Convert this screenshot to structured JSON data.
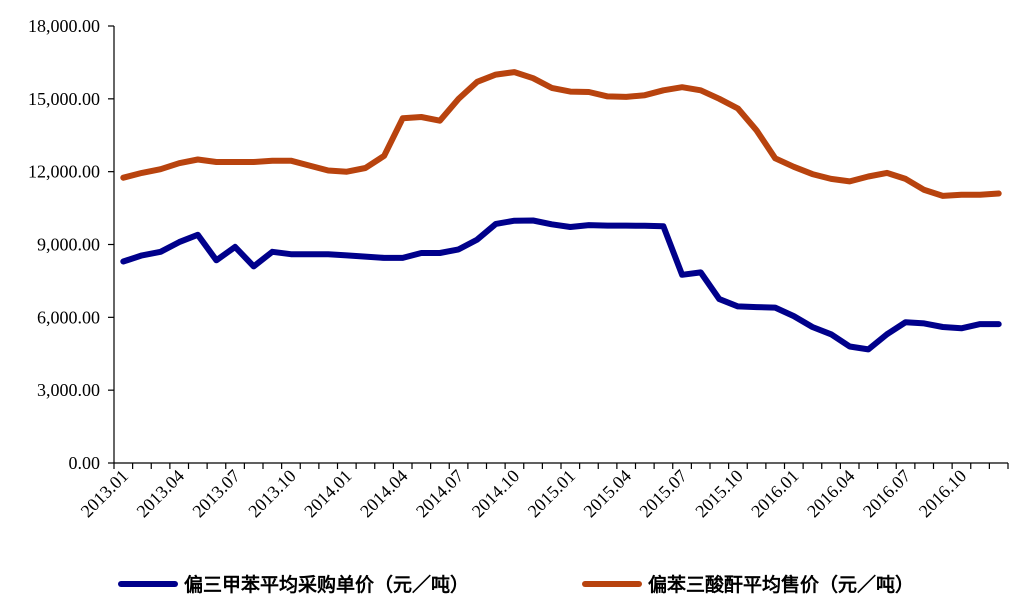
{
  "chart_data": {
    "type": "line",
    "title": "",
    "xlabel": "",
    "ylabel": "",
    "ylim": [
      0,
      18000
    ],
    "y_ticks": [
      "0.00",
      "3,000.00",
      "6,000.00",
      "9,000.00",
      "12,000.00",
      "15,000.00",
      "18,000.00"
    ],
    "x_tick_labels": [
      "2013.01",
      "2013.04",
      "2013.07",
      "2013.10",
      "2014.01",
      "2014.04",
      "2014.07",
      "2014.10",
      "2015.01",
      "2015.04",
      "2015.07",
      "2015.10",
      "2016.01",
      "2016.04",
      "2016.07",
      "2016.10"
    ],
    "grid": false,
    "legend_position": "bottom",
    "series": [
      {
        "name": "偏三甲苯平均采购单价（元／吨）",
        "color": "#00008B",
        "values": [
          8300,
          8550,
          8700,
          9100,
          9400,
          8350,
          8900,
          8100,
          8700,
          8600,
          8600,
          8600,
          8550,
          8500,
          8450,
          8450,
          8650,
          8650,
          8800,
          9200,
          9850,
          9980,
          9990,
          9830,
          9720,
          9800,
          9780,
          9780,
          9770,
          9750,
          7750,
          7850,
          6750,
          6450,
          6420,
          6400,
          6050,
          5600,
          5300,
          4800,
          4680,
          5300,
          5800,
          5750,
          5600,
          5550,
          5720,
          5720
        ]
      },
      {
        "name": "偏苯三酸酐平均售价（元／吨）",
        "color": "#B8430E",
        "values": [
          11750,
          11950,
          12100,
          12350,
          12500,
          12400,
          12400,
          12400,
          12450,
          12450,
          12250,
          12050,
          12000,
          12150,
          12650,
          14200,
          14250,
          14100,
          15000,
          15700,
          16000,
          16100,
          15850,
          15450,
          15300,
          15280,
          15100,
          15080,
          15150,
          15350,
          15480,
          15350,
          15000,
          14600,
          13700,
          12550,
          12200,
          11900,
          11700,
          11600,
          11800,
          11950,
          11700,
          11250,
          11000,
          11050,
          11050,
          11100
        ]
      }
    ]
  }
}
